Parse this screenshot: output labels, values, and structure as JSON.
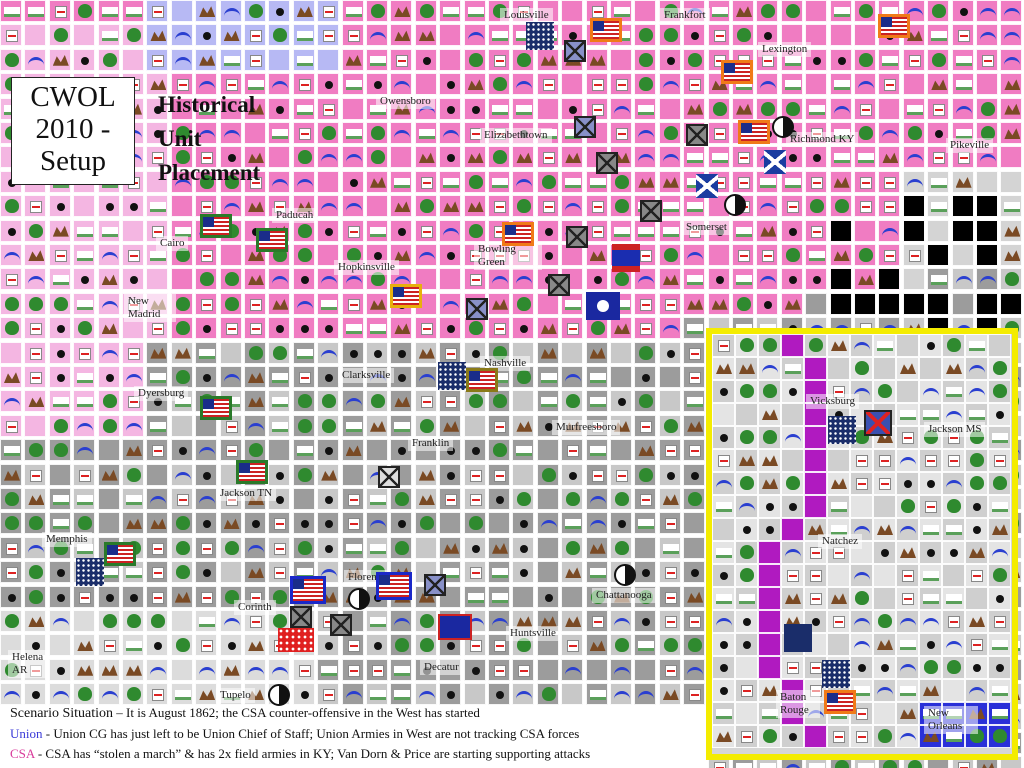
{
  "title": {
    "lines": [
      "CWOL",
      "2010 -",
      "Setup"
    ]
  },
  "subtitle": {
    "lines": [
      "Historical",
      "Unit",
      "Placement"
    ]
  },
  "cities": [
    {
      "name": "Louisville"
    },
    {
      "name": "Frankfort"
    },
    {
      "name": "Lexington"
    },
    {
      "name": "Owensboro"
    },
    {
      "name": "Elizabethtown"
    },
    {
      "name": "Richmond KY"
    },
    {
      "name": "Pikeville"
    },
    {
      "name": "Paducah"
    },
    {
      "name": "Cairo"
    },
    {
      "name": "Somerset"
    },
    {
      "name": "Bowling Green"
    },
    {
      "name": "Hopkinsville"
    },
    {
      "name": "New Madrid"
    },
    {
      "name": "Nashville"
    },
    {
      "name": "Clarksville"
    },
    {
      "name": "Dyersburg"
    },
    {
      "name": "Franklin"
    },
    {
      "name": "Murfreesboro"
    },
    {
      "name": "Jackson TN"
    },
    {
      "name": "Memphis"
    },
    {
      "name": "Florence"
    },
    {
      "name": "Chattanooga"
    },
    {
      "name": "Corinth"
    },
    {
      "name": "Huntsville"
    },
    {
      "name": "Helena AR"
    },
    {
      "name": "Decatur"
    },
    {
      "name": "Tupelo"
    }
  ],
  "inset_cities": [
    {
      "name": "Vicksburg"
    },
    {
      "name": "Jackson MS"
    },
    {
      "name": "Natchez"
    },
    {
      "name": "Baton Rouge"
    },
    {
      "name": "New Orleans"
    }
  ],
  "scenario": {
    "heading": "Scenario Situation",
    "heading_text": "It is August 1862; the CSA counter-offensive in the West has started",
    "union_label": "Union",
    "union_text": "Union CG has just left to be Union Chief of Staff; Union Armies in West are not tracking CSA forces",
    "csa_label": "CSA",
    "csa_text": "CSA has “stolen a march” & has 2x field armies in KY; Van Dorn & Price are starting supporting attacks"
  },
  "colors": {
    "union_territory": "#f07cc2",
    "csa_territory": "#9c9c9c",
    "neutral_territory": "#f4b6e2",
    "inset_border": "#f4ec00",
    "union_text": "#3a3ad8",
    "csa_text": "#d83a9a"
  }
}
